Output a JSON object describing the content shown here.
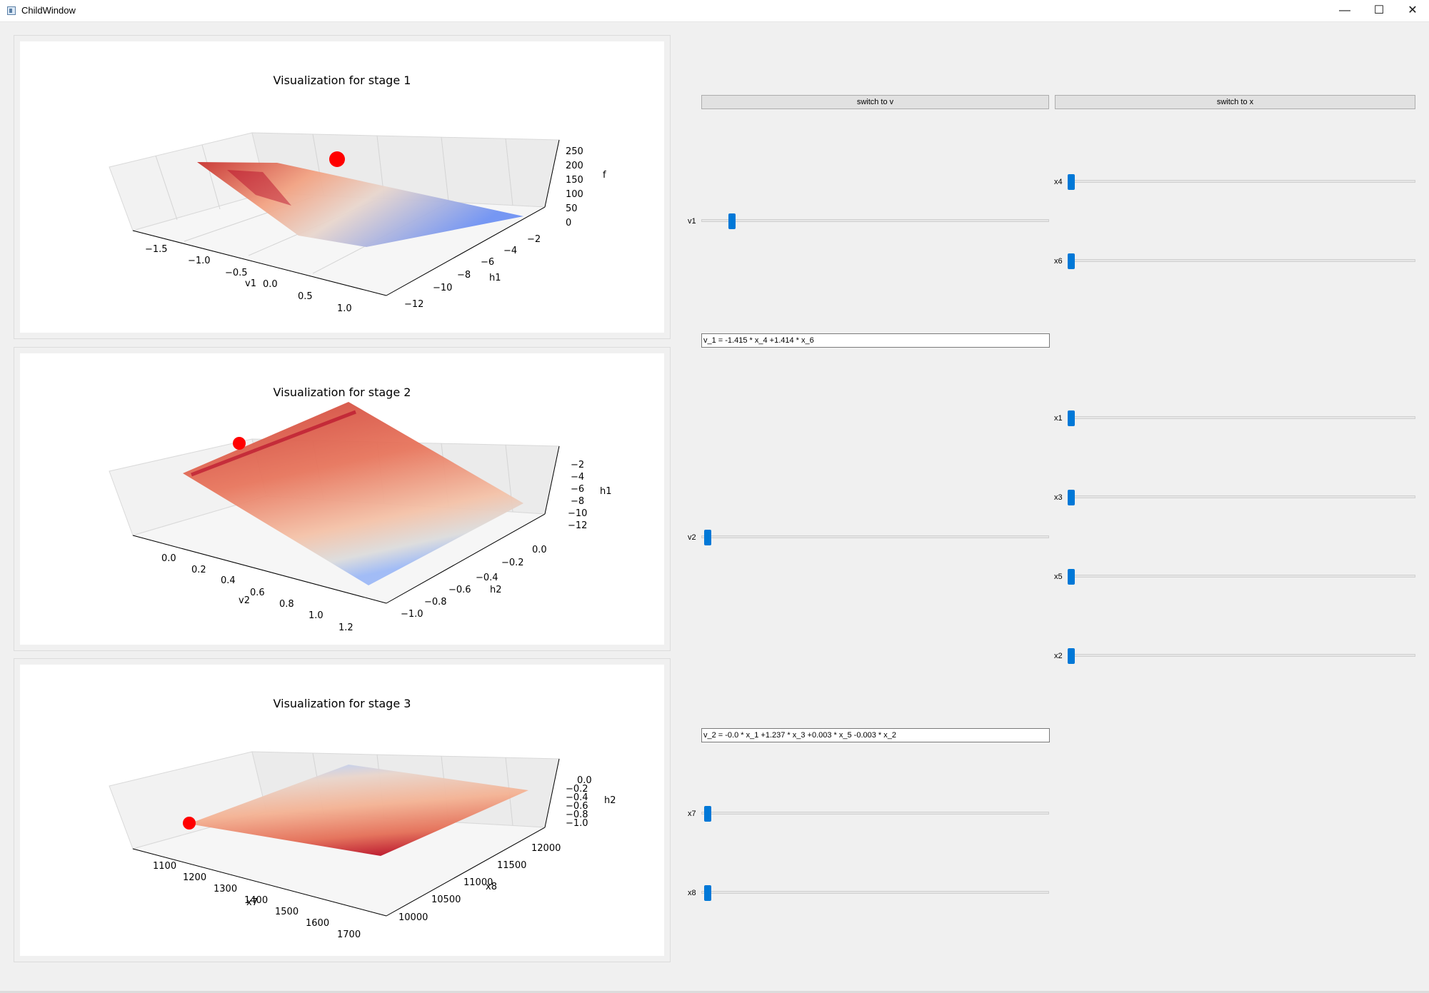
{
  "window": {
    "title": "ChildWindow",
    "minimize_icon": "minimize-icon",
    "maximize_icon": "maximize-icon",
    "close_icon": "close-icon",
    "controls": {
      "minimize": "—",
      "maximize": "☐",
      "close": "✕"
    }
  },
  "colors": {
    "accent": "#0078d7",
    "surface_high": "#b40426",
    "surface_low": "#3b4cc0",
    "marker": "#ff0000"
  },
  "plots": [
    {
      "title": "Visualization for stage 1",
      "x_axis": {
        "label": "v1",
        "ticks": [
          "−1.5",
          "−1.0",
          "−0.5",
          "0.0",
          "0.5",
          "1.0"
        ]
      },
      "y_axis": {
        "label": "h1",
        "ticks": [
          "−12",
          "−10",
          "−8",
          "−6",
          "−4",
          "−2"
        ]
      },
      "z_axis": {
        "label": "f",
        "ticks": [
          "0",
          "50",
          "100",
          "150",
          "200",
          "250"
        ]
      }
    },
    {
      "title": "Visualization for stage 2",
      "x_axis": {
        "label": "v2",
        "ticks": [
          "0.0",
          "0.2",
          "0.4",
          "0.6",
          "0.8",
          "1.0",
          "1.2"
        ]
      },
      "y_axis": {
        "label": "h2",
        "ticks": [
          "−1.0",
          "−0.8",
          "−0.6",
          "−0.4",
          "−0.2",
          "0.0"
        ]
      },
      "z_axis": {
        "label": "h1",
        "ticks": [
          "−12",
          "−10",
          "−8",
          "−6",
          "−4",
          "−2"
        ]
      }
    },
    {
      "title": "Visualization for stage 3",
      "x_axis": {
        "label": "x7",
        "ticks": [
          "1100",
          "1200",
          "1300",
          "1400",
          "1500",
          "1600",
          "1700"
        ]
      },
      "y_axis": {
        "label": "x8",
        "ticks": [
          "10000",
          "10500",
          "11000",
          "11500",
          "12000"
        ]
      },
      "z_axis": {
        "label": "h2",
        "ticks": [
          "−1.0",
          "−0.8",
          "−0.6",
          "−0.4",
          "−0.2",
          "0.0"
        ]
      }
    }
  ],
  "buttons": {
    "switch_v": "switch to v",
    "switch_x": "switch to x"
  },
  "sliders": {
    "x4": {
      "label": "x4",
      "value_fraction": 0.0
    },
    "v1": {
      "label": "v1",
      "value_fraction": 0.07
    },
    "x6": {
      "label": "x6",
      "value_fraction": 0.0
    },
    "x1": {
      "label": "x1",
      "value_fraction": 0.0
    },
    "x3": {
      "label": "x3",
      "value_fraction": 0.0
    },
    "v2": {
      "label": "v2",
      "value_fraction": 0.0
    },
    "x5": {
      "label": "x5",
      "value_fraction": 0.0
    },
    "x2": {
      "label": "x2",
      "value_fraction": 0.0
    },
    "x7": {
      "label": "x7",
      "value_fraction": 0.0
    },
    "x8": {
      "label": "x8",
      "value_fraction": 0.0
    }
  },
  "expressions": {
    "v1": "v_1 =  -1.415 * x_4 +1.414 * x_6",
    "v2": "v_2 =  -0.0 * x_1 +1.237 * x_3 +0.003 * x_5 -0.003 * x_2"
  }
}
